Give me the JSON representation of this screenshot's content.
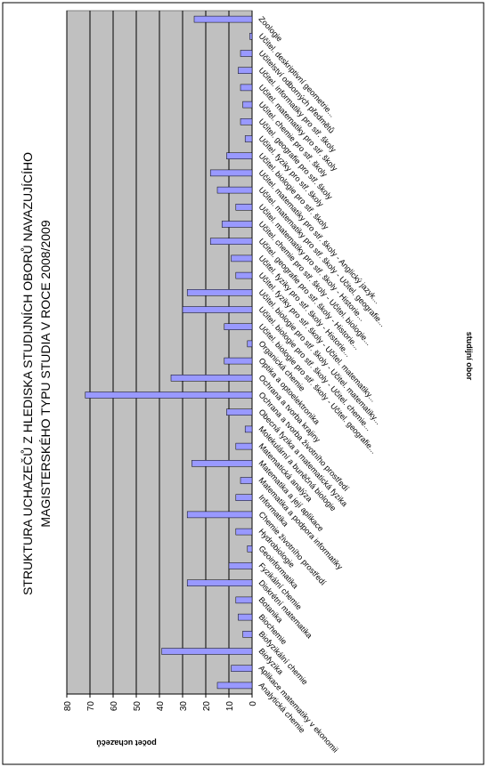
{
  "chart_data": {
    "type": "bar",
    "orientation": "horizontal",
    "title": [
      "STRUKTURA UCHAZEČŮ Z HLEDISKA STUDIJNÍCH OBORŮ NAVAZUJÍCÍHO",
      "MAGISTERSKÉHO TYPU STUDIA V ROCE 2008/2009"
    ],
    "value_axis_title": "počet uchazečů",
    "category_axis_title": "studijní obor",
    "categories": [
      "Analytická chemie",
      "Aplikace matematiky v ekonomii",
      "Biofyzika",
      "Biofyzikální chemie",
      "Biochemie",
      "Botanika",
      "Diskrétní matematika",
      "Fyzikální chemie",
      "Geoinformatika",
      "Hydrobiologie",
      "Chemie životního prostředí",
      "Informatika",
      "Matematika a podpora informatiky",
      "Matematika a její aplikace",
      "Matematická analýza",
      "Molekulární a buněčná biologie",
      "Obecná fyzika a matematická fyzika",
      "Ochrana a tvorba životního prostředí",
      "Ochrana a tvorba krajiny",
      "Optika a optoelektronika",
      "Organická chemie",
      "Učitel. biologie pro stř. školy - Učitel. geografie...",
      "Učitel. biologie pro stř. školy - Učitel. chemie...",
      "Učitel. biologie pro stř. školy - Učitel. matematiky...",
      "Učitel. fyziky pro stř. školy - Učitel. matematiky...",
      "Učitel. fyziky pro stř. školy - Historie...",
      "Učitel. geografie pro stř. školy - Historie...",
      "Učitel. chemie pro stř. školy - Učitel. biologie...",
      "Učitel. matematiky pro stř. školy - Historie...",
      "Učitel. matematiky pro stř. školy - Učitel. geografie...",
      "Učitel. matematiky pro stř. školy - Anglický jazyk...",
      "Učitel. biologie pro stř. školy",
      "Učitel. fyziky pro stř. školy",
      "Učitel. geografie pro stř. školy",
      "Učitel. chemie pro stř. školy",
      "Učitel. matematiky pro stř. školy",
      "Učitel. informatiky pro stř. školy",
      "Učitelství odborných předmětů",
      "Učitel. deskriptivní geometrie...",
      "Zoologie"
    ],
    "values": [
      15,
      9,
      39,
      4,
      6,
      7,
      28,
      10,
      2,
      7,
      28,
      7,
      5,
      26,
      7,
      3,
      11,
      72,
      35,
      12,
      2,
      12,
      30,
      28,
      7,
      9,
      18,
      13,
      7,
      15,
      18,
      11,
      3,
      5,
      4,
      5,
      6,
      5,
      1,
      25
    ],
    "color": "#9999ff",
    "xlim": [
      0,
      80
    ],
    "xticks": [
      0,
      10,
      20,
      30,
      40,
      50,
      60,
      70,
      80
    ],
    "grid": true
  }
}
